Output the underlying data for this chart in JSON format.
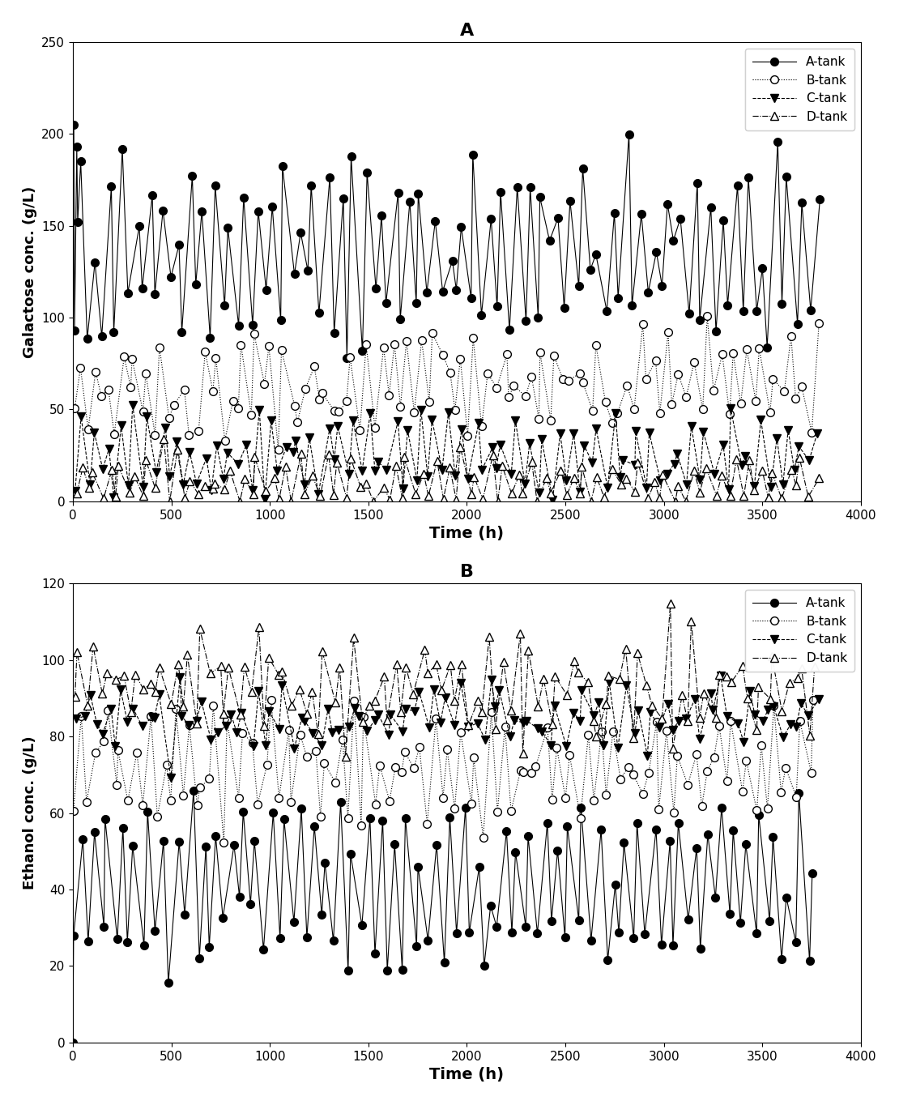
{
  "title_A": "A",
  "title_B": "B",
  "xlabel": "Time (h)",
  "ylabel_A": "Galactose conc. (g/L)",
  "ylabel_B": "Ethanol conc. (g/L)",
  "xlim": [
    0,
    4000
  ],
  "ylim_A": [
    0,
    250
  ],
  "ylim_B": [
    0,
    120
  ],
  "yticks_A": [
    0,
    50,
    100,
    150,
    200,
    250
  ],
  "yticks_B": [
    0,
    20,
    40,
    60,
    80,
    100,
    120
  ],
  "xticks": [
    0,
    500,
    1000,
    1500,
    2000,
    2500,
    3000,
    3500,
    4000
  ],
  "legend_labels": [
    "A-tank",
    "B-tank",
    "C-tank",
    "D-tank"
  ],
  "background_color": "#ffffff"
}
